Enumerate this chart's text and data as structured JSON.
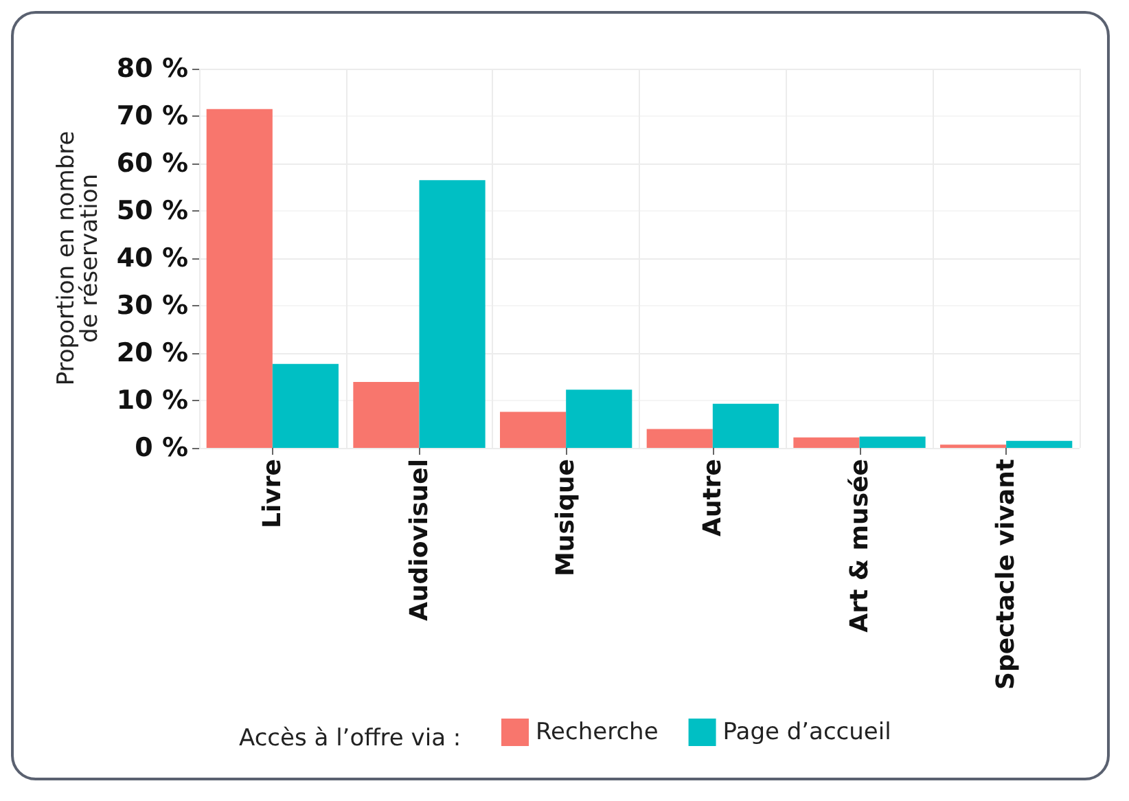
{
  "chart_data": {
    "type": "bar",
    "ylabel": "Proportion en nombre\nde réservation",
    "legend_title": "Accès à l’offre via :",
    "categories": [
      "Livre",
      "Audiovisuel",
      "Musique",
      "Autre",
      "Art & musée",
      "Spectacle vivant"
    ],
    "series": [
      {
        "name": "Recherche",
        "color": "#f8766d",
        "values": [
          71.5,
          13.9,
          7.6,
          4.0,
          2.2,
          0.7
        ]
      },
      {
        "name": "Page d’accueil",
        "color": "#00bfc4",
        "values": [
          17.7,
          56.5,
          12.3,
          9.3,
          2.4,
          1.5
        ]
      }
    ],
    "ylim": [
      0,
      80
    ],
    "yticks": [
      {
        "value": 0,
        "label": "0 %"
      },
      {
        "value": 10,
        "label": "10 %"
      },
      {
        "value": 20,
        "label": "20 %"
      },
      {
        "value": 30,
        "label": "30 %"
      },
      {
        "value": 40,
        "label": "40 %"
      },
      {
        "value": 50,
        "label": "50 %"
      },
      {
        "value": 60,
        "label": "60 %"
      },
      {
        "value": 70,
        "label": "70 %"
      },
      {
        "value": 80,
        "label": "80 %"
      }
    ],
    "grid": true,
    "legend": "bottom"
  }
}
